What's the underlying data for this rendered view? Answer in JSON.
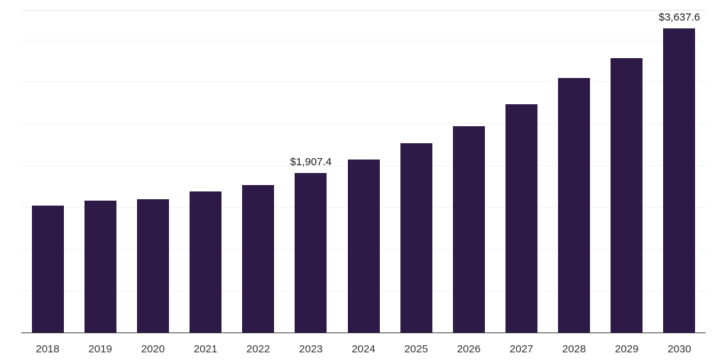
{
  "chart_data": {
    "type": "bar",
    "title": "",
    "xlabel": "",
    "ylabel": "",
    "categories": [
      "2018",
      "2019",
      "2020",
      "2021",
      "2022",
      "2023",
      "2024",
      "2025",
      "2026",
      "2027",
      "2028",
      "2029",
      "2030"
    ],
    "values": [
      1520,
      1580,
      1595,
      1690,
      1765,
      1907.4,
      2070,
      2265,
      2470,
      2730,
      3045,
      3280,
      3637.6
    ],
    "annotations": [
      {
        "category": "2023",
        "text": "$1,907.4"
      },
      {
        "category": "2030",
        "text": "$3,637.6"
      }
    ],
    "ylim": [
      0,
      3866
    ],
    "grid_step": 500,
    "grid": "horizontal",
    "legend_position": "none",
    "bar_color": "#2e1a47",
    "axis_color": "#3a3a3a",
    "gridline_color": "#f2f2f2"
  }
}
